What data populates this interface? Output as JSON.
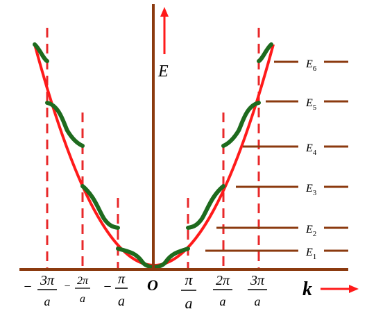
{
  "colors": {
    "axis": "#8B3A0F",
    "free_electron_curve": "#FF1A1A",
    "band_curve": "#1E6B1E",
    "zone_boundary": "#E8282A",
    "arrow": "#FF1A1A",
    "text": "#000000"
  },
  "labels": {
    "energy_axis": "E",
    "wavevector_axis": "k",
    "origin": "O"
  },
  "k_ticks": [
    {
      "id": "m3",
      "sign": "−",
      "num": "3π",
      "den": "a"
    },
    {
      "id": "m2",
      "sign": "−",
      "num": "2π",
      "den": "a"
    },
    {
      "id": "m1",
      "sign": "−",
      "num": "π",
      "den": "a"
    },
    {
      "id": "p1",
      "sign": "",
      "num": "π",
      "den": "a"
    },
    {
      "id": "p2",
      "sign": "",
      "num": "2π",
      "den": "a"
    },
    {
      "id": "p3",
      "sign": "",
      "num": "3π",
      "den": "a"
    }
  ],
  "energy_levels": [
    {
      "id": "E1",
      "letter": "E",
      "sub": "1"
    },
    {
      "id": "E2",
      "letter": "E",
      "sub": "2"
    },
    {
      "id": "E3",
      "letter": "E",
      "sub": "3"
    },
    {
      "id": "E4",
      "letter": "E",
      "sub": "4"
    },
    {
      "id": "E5",
      "letter": "E",
      "sub": "5"
    },
    {
      "id": "E6",
      "letter": "E",
      "sub": "6"
    }
  ]
}
